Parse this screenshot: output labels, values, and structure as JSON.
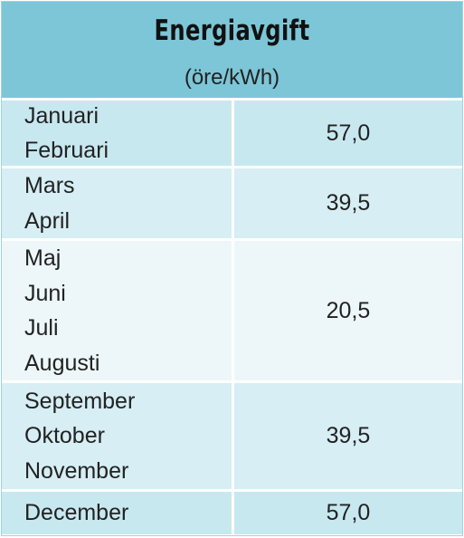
{
  "header": {
    "title": "Energiavgift",
    "subtitle": "(öre/kWh)"
  },
  "table": {
    "rows": [
      {
        "months": [
          "Januari",
          "Februari"
        ],
        "value": "57,0"
      },
      {
        "months": [
          "Mars",
          "April"
        ],
        "value": "39,5"
      },
      {
        "months": [
          "Maj",
          "Juni",
          "Juli",
          "Augusti"
        ],
        "value": "20,5"
      },
      {
        "months": [
          "September",
          "Oktober",
          "November"
        ],
        "value": "39,5"
      },
      {
        "months": [
          "December"
        ],
        "value": "57,0"
      }
    ]
  }
}
